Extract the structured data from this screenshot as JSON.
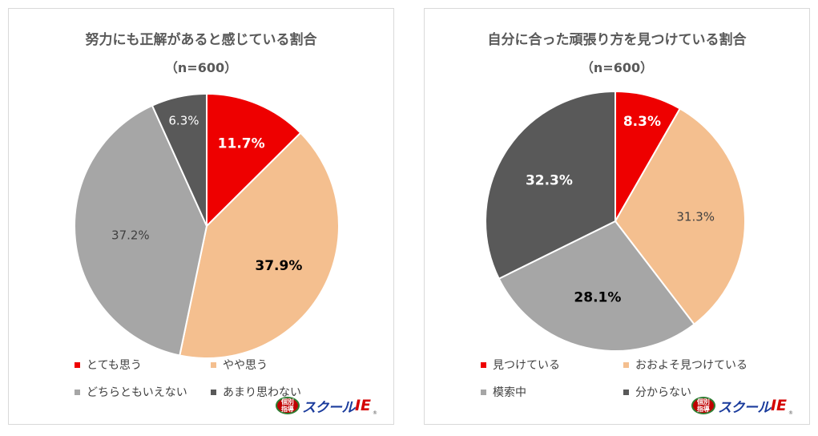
{
  "chart_data": [
    {
      "type": "pie",
      "title": "努力にも正解があると感じている割合",
      "subtitle": "（n=600）",
      "categories": [
        "とても思う",
        "やや思う",
        "どちらともいえない",
        "あまり思わない"
      ],
      "values": [
        11.7,
        37.9,
        37.2,
        6.3
      ],
      "labels": [
        "11.7%",
        "37.9%",
        "37.2%",
        "6.3%"
      ],
      "colors": [
        "#ee0000",
        "#f4bf8f",
        "#a6a6a6",
        "#595959"
      ],
      "label_colors": [
        "#ffffff",
        "#000000",
        "#404040",
        "#ffffff"
      ],
      "label_bold": [
        true,
        true,
        false,
        false
      ],
      "legend": [
        "とても思う",
        "やや思う",
        "どちらともいえない",
        "あまり思わない"
      ]
    },
    {
      "type": "pie",
      "title": "自分に合った頑張り方を見つけている割合",
      "subtitle": "（n=600）",
      "categories": [
        "見つけている",
        "おおよそ見つけている",
        "模索中",
        "分からない"
      ],
      "values": [
        8.3,
        31.3,
        28.1,
        32.3
      ],
      "labels": [
        "8.3%",
        "31.3%",
        "28.1%",
        "32.3%"
      ],
      "colors": [
        "#ee0000",
        "#f4bf8f",
        "#a6a6a6",
        "#595959"
      ],
      "label_colors": [
        "#ffffff",
        "#404040",
        "#000000",
        "#ffffff"
      ],
      "label_bold": [
        true,
        false,
        true,
        true
      ],
      "legend": [
        "見つけている",
        "おおよそ見つけている",
        "模索中",
        "分からない"
      ]
    }
  ],
  "logo": {
    "badge_line1": "個別",
    "badge_line2": "指導",
    "name": "スクール",
    "accent": "IE",
    "mark": "®"
  }
}
